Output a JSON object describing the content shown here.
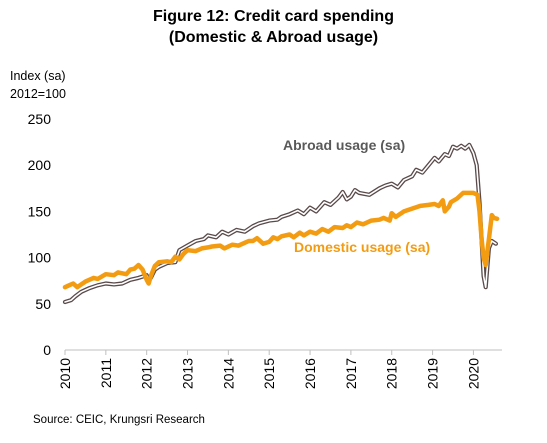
{
  "header": {
    "title_line1": "Figure 12: Credit card spending",
    "title_line2": "(Domestic & Abroad usage)"
  },
  "y_axis_label": {
    "line1": "Index (sa)",
    "line2": "2012=100"
  },
  "source": "Source: CEIC, Krungsri Research",
  "colors": {
    "domestic": "#f39c12",
    "abroad_outer": "#5a4a4a",
    "abroad_inner": "#ffffff",
    "axis": "#bfbfbf"
  },
  "chart_data": {
    "type": "line",
    "xlim": [
      2010,
      2020.7
    ],
    "ylim": [
      0,
      250
    ],
    "yticks": [
      0,
      50,
      100,
      150,
      200,
      250
    ],
    "xticks": [
      "2010",
      "2011",
      "2012",
      "2013",
      "2014",
      "2015",
      "2016",
      "2017",
      "2018",
      "2019",
      "2020"
    ],
    "series": [
      {
        "name": "Abroad usage (sa)",
        "style": "double-line",
        "points": [
          [
            2010.0,
            52
          ],
          [
            2010.15,
            54
          ],
          [
            2010.25,
            58
          ],
          [
            2010.4,
            63
          ],
          [
            2010.6,
            67
          ],
          [
            2010.8,
            70
          ],
          [
            2011.0,
            72
          ],
          [
            2011.2,
            71
          ],
          [
            2011.4,
            72
          ],
          [
            2011.6,
            76
          ],
          [
            2011.8,
            78
          ],
          [
            2012.0,
            81
          ],
          [
            2012.05,
            76
          ],
          [
            2012.1,
            78
          ],
          [
            2012.2,
            87
          ],
          [
            2012.3,
            90
          ],
          [
            2012.5,
            94
          ],
          [
            2012.7,
            95
          ],
          [
            2012.8,
            108
          ],
          [
            2013.0,
            113
          ],
          [
            2013.2,
            118
          ],
          [
            2013.4,
            120
          ],
          [
            2013.5,
            124
          ],
          [
            2013.7,
            122
          ],
          [
            2013.85,
            128
          ],
          [
            2014.0,
            125
          ],
          [
            2014.2,
            130
          ],
          [
            2014.4,
            128
          ],
          [
            2014.6,
            134
          ],
          [
            2014.75,
            137
          ],
          [
            2015.0,
            140
          ],
          [
            2015.2,
            141
          ],
          [
            2015.3,
            144
          ],
          [
            2015.5,
            147
          ],
          [
            2015.7,
            151
          ],
          [
            2015.85,
            147
          ],
          [
            2016.0,
            154
          ],
          [
            2016.15,
            150
          ],
          [
            2016.35,
            160
          ],
          [
            2016.5,
            157
          ],
          [
            2016.7,
            165
          ],
          [
            2016.8,
            171
          ],
          [
            2016.9,
            163
          ],
          [
            2017.0,
            166
          ],
          [
            2017.1,
            173
          ],
          [
            2017.2,
            170
          ],
          [
            2017.45,
            168
          ],
          [
            2017.7,
            175
          ],
          [
            2017.85,
            178
          ],
          [
            2018.0,
            180
          ],
          [
            2018.15,
            176
          ],
          [
            2018.3,
            184
          ],
          [
            2018.5,
            188
          ],
          [
            2018.6,
            195
          ],
          [
            2018.75,
            192
          ],
          [
            2018.9,
            200
          ],
          [
            2019.05,
            208
          ],
          [
            2019.15,
            204
          ],
          [
            2019.3,
            212
          ],
          [
            2019.4,
            210
          ],
          [
            2019.5,
            220
          ],
          [
            2019.6,
            218
          ],
          [
            2019.7,
            221
          ],
          [
            2019.8,
            218
          ],
          [
            2019.9,
            222
          ],
          [
            2020.0,
            213
          ],
          [
            2020.08,
            200
          ],
          [
            2020.15,
            160
          ],
          [
            2020.25,
            80
          ],
          [
            2020.3,
            68
          ],
          [
            2020.38,
            110
          ],
          [
            2020.45,
            118
          ],
          [
            2020.55,
            115
          ]
        ]
      },
      {
        "name": "Domestic usage (sa)",
        "style": "thick",
        "points": [
          [
            2010.0,
            68
          ],
          [
            2010.1,
            70
          ],
          [
            2010.2,
            72
          ],
          [
            2010.3,
            68
          ],
          [
            2010.4,
            71
          ],
          [
            2010.5,
            74
          ],
          [
            2010.7,
            78
          ],
          [
            2010.8,
            77
          ],
          [
            2011.0,
            82
          ],
          [
            2011.2,
            81
          ],
          [
            2011.3,
            84
          ],
          [
            2011.5,
            82
          ],
          [
            2011.6,
            87
          ],
          [
            2011.7,
            88
          ],
          [
            2011.8,
            92
          ],
          [
            2011.9,
            87
          ],
          [
            2012.0,
            76
          ],
          [
            2012.05,
            72
          ],
          [
            2012.1,
            80
          ],
          [
            2012.2,
            91
          ],
          [
            2012.3,
            95
          ],
          [
            2012.5,
            96
          ],
          [
            2012.6,
            95
          ],
          [
            2012.7,
            101
          ],
          [
            2012.8,
            98
          ],
          [
            2012.9,
            104
          ],
          [
            2013.0,
            108
          ],
          [
            2013.2,
            107
          ],
          [
            2013.35,
            110
          ],
          [
            2013.5,
            111
          ],
          [
            2013.6,
            112
          ],
          [
            2013.8,
            113
          ],
          [
            2013.9,
            110
          ],
          [
            2014.1,
            114
          ],
          [
            2014.25,
            113
          ],
          [
            2014.4,
            116
          ],
          [
            2014.5,
            118
          ],
          [
            2014.6,
            118
          ],
          [
            2014.7,
            121
          ],
          [
            2014.85,
            115
          ],
          [
            2015.0,
            117
          ],
          [
            2015.1,
            122
          ],
          [
            2015.2,
            120
          ],
          [
            2015.3,
            123
          ],
          [
            2015.5,
            125
          ],
          [
            2015.6,
            122
          ],
          [
            2015.75,
            127
          ],
          [
            2015.85,
            124
          ],
          [
            2016.0,
            128
          ],
          [
            2016.15,
            126
          ],
          [
            2016.3,
            131
          ],
          [
            2016.45,
            128
          ],
          [
            2016.6,
            133
          ],
          [
            2016.8,
            132
          ],
          [
            2016.9,
            135
          ],
          [
            2017.0,
            133
          ],
          [
            2017.15,
            138
          ],
          [
            2017.3,
            136
          ],
          [
            2017.5,
            140
          ],
          [
            2017.7,
            141
          ],
          [
            2017.8,
            143
          ],
          [
            2017.95,
            140
          ],
          [
            2018.0,
            148
          ],
          [
            2018.1,
            144
          ],
          [
            2018.3,
            150
          ],
          [
            2018.5,
            153
          ],
          [
            2018.7,
            156
          ],
          [
            2018.9,
            157
          ],
          [
            2019.05,
            158
          ],
          [
            2019.15,
            156
          ],
          [
            2019.25,
            162
          ],
          [
            2019.3,
            150
          ],
          [
            2019.4,
            155
          ],
          [
            2019.45,
            160
          ],
          [
            2019.6,
            164
          ],
          [
            2019.75,
            170
          ],
          [
            2020.0,
            170
          ],
          [
            2020.1,
            168
          ],
          [
            2020.15,
            150
          ],
          [
            2020.2,
            120
          ],
          [
            2020.25,
            100
          ],
          [
            2020.3,
            92
          ],
          [
            2020.38,
            120
          ],
          [
            2020.45,
            146
          ],
          [
            2020.5,
            143
          ],
          [
            2020.58,
            142
          ]
        ]
      }
    ],
    "annotations": [
      {
        "text": "Abroad usage (sa)",
        "series": "abroad"
      },
      {
        "text": "Domestic usage (sa)",
        "series": "domestic"
      }
    ],
    "grid": false,
    "legend": "inline labels"
  }
}
